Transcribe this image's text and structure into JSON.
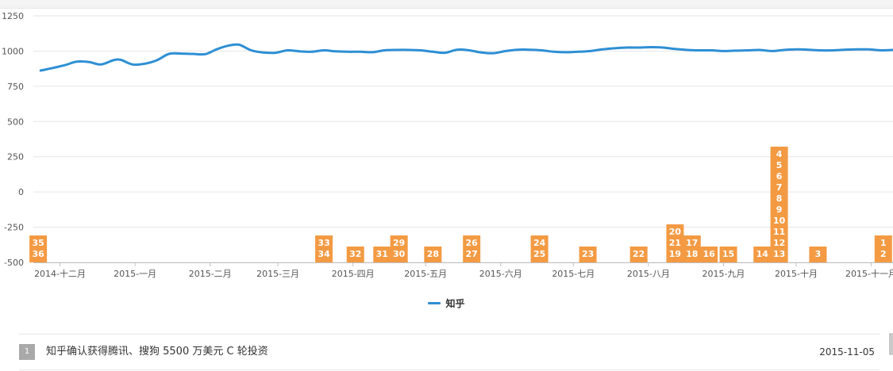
{
  "chart_data": {
    "type": "line",
    "ylim": [
      -500,
      1250
    ],
    "yticks": [
      1250,
      1000,
      750,
      500,
      250,
      0,
      -250,
      -500
    ],
    "xlim": [
      "2014-11-20",
      "2015-11-10"
    ],
    "xticks": [
      {
        "date": "2014-12-01",
        "label": "2014-十二月"
      },
      {
        "date": "2015-01-01",
        "label": "2015-一月"
      },
      {
        "date": "2015-02-01",
        "label": "2015-二月"
      },
      {
        "date": "2015-03-01",
        "label": "2015-三月"
      },
      {
        "date": "2015-04-01",
        "label": "2015-四月"
      },
      {
        "date": "2015-05-01",
        "label": "2015-五月"
      },
      {
        "date": "2015-06-01",
        "label": "2015-六月"
      },
      {
        "date": "2015-07-01",
        "label": "2015-七月"
      },
      {
        "date": "2015-08-01",
        "label": "2015-八月"
      },
      {
        "date": "2015-09-01",
        "label": "2015-九月"
      },
      {
        "date": "2015-10-01",
        "label": "2015-十月"
      },
      {
        "date": "2015-11-01",
        "label": "2015-十一月"
      }
    ],
    "grid": true,
    "legend_position": "bottom",
    "series": [
      {
        "name": "知乎",
        "color": "#2e8fd4",
        "points": [
          [
            "2014-11-23",
            862
          ],
          [
            "2014-11-28",
            880
          ],
          [
            "2014-12-03",
            900
          ],
          [
            "2014-12-08",
            925
          ],
          [
            "2014-12-13",
            922
          ],
          [
            "2014-12-18",
            905
          ],
          [
            "2014-12-23",
            935
          ],
          [
            "2014-12-26",
            938
          ],
          [
            "2014-12-31",
            905
          ],
          [
            "2015-01-05",
            910
          ],
          [
            "2015-01-10",
            935
          ],
          [
            "2015-01-15",
            980
          ],
          [
            "2015-01-20",
            982
          ],
          [
            "2015-01-25",
            980
          ],
          [
            "2015-01-30",
            978
          ],
          [
            "2015-02-04",
            1015
          ],
          [
            "2015-02-09",
            1040
          ],
          [
            "2015-02-13",
            1045
          ],
          [
            "2015-02-18",
            1005
          ],
          [
            "2015-02-23",
            990
          ],
          [
            "2015-02-28",
            988
          ],
          [
            "2015-03-05",
            1005
          ],
          [
            "2015-03-10",
            998
          ],
          [
            "2015-03-15",
            995
          ],
          [
            "2015-03-20",
            1005
          ],
          [
            "2015-03-25",
            998
          ],
          [
            "2015-03-30",
            995
          ],
          [
            "2015-04-04",
            995
          ],
          [
            "2015-04-09",
            992
          ],
          [
            "2015-04-14",
            1005
          ],
          [
            "2015-04-19",
            1008
          ],
          [
            "2015-04-24",
            1008
          ],
          [
            "2015-04-29",
            1005
          ],
          [
            "2015-05-04",
            995
          ],
          [
            "2015-05-09",
            988
          ],
          [
            "2015-05-14",
            1010
          ],
          [
            "2015-05-19",
            1005
          ],
          [
            "2015-05-24",
            990
          ],
          [
            "2015-05-29",
            985
          ],
          [
            "2015-06-03",
            1000
          ],
          [
            "2015-06-08",
            1010
          ],
          [
            "2015-06-13",
            1010
          ],
          [
            "2015-06-18",
            1005
          ],
          [
            "2015-06-23",
            995
          ],
          [
            "2015-06-28",
            992
          ],
          [
            "2015-07-03",
            995
          ],
          [
            "2015-07-08",
            1000
          ],
          [
            "2015-07-13",
            1012
          ],
          [
            "2015-07-18",
            1020
          ],
          [
            "2015-07-23",
            1025
          ],
          [
            "2015-07-28",
            1025
          ],
          [
            "2015-08-02",
            1028
          ],
          [
            "2015-08-07",
            1025
          ],
          [
            "2015-08-12",
            1015
          ],
          [
            "2015-08-17",
            1008
          ],
          [
            "2015-08-22",
            1005
          ],
          [
            "2015-08-27",
            1005
          ],
          [
            "2015-09-01",
            1000
          ],
          [
            "2015-09-06",
            1003
          ],
          [
            "2015-09-11",
            1005
          ],
          [
            "2015-09-16",
            1008
          ],
          [
            "2015-09-21",
            1000
          ],
          [
            "2015-09-26",
            1008
          ],
          [
            "2015-10-01",
            1012
          ],
          [
            "2015-10-06",
            1010
          ],
          [
            "2015-10-11",
            1005
          ],
          [
            "2015-10-16",
            1005
          ],
          [
            "2015-10-21",
            1010
          ],
          [
            "2015-10-26",
            1012
          ],
          [
            "2015-10-31",
            1012
          ],
          [
            "2015-11-05",
            1005
          ],
          [
            "2015-11-10",
            1008
          ]
        ]
      }
    ],
    "flags": [
      {
        "date": "2014-11-22",
        "labels": [
          "35",
          "36"
        ]
      },
      {
        "date": "2015-03-20",
        "labels": [
          "33",
          "34"
        ]
      },
      {
        "date": "2015-04-02",
        "labels": [
          "32"
        ]
      },
      {
        "date": "2015-04-13",
        "labels": [
          "31"
        ]
      },
      {
        "date": "2015-04-20",
        "labels": [
          "29",
          "30"
        ]
      },
      {
        "date": "2015-05-04",
        "labels": [
          "28"
        ]
      },
      {
        "date": "2015-05-20",
        "labels": [
          "26",
          "27"
        ]
      },
      {
        "date": "2015-06-17",
        "labels": [
          "24",
          "25"
        ]
      },
      {
        "date": "2015-07-07",
        "labels": [
          "23"
        ]
      },
      {
        "date": "2015-07-28",
        "labels": [
          "22"
        ]
      },
      {
        "date": "2015-08-12",
        "labels": [
          "20",
          "21",
          "19"
        ]
      },
      {
        "date": "2015-08-19",
        "labels": [
          "17",
          "18"
        ]
      },
      {
        "date": "2015-08-26",
        "labels": [
          "16"
        ]
      },
      {
        "date": "2015-09-03",
        "labels": [
          "15"
        ]
      },
      {
        "date": "2015-09-17",
        "labels": [
          "14"
        ]
      },
      {
        "date": "2015-09-24",
        "labels": [
          "4",
          "5",
          "6",
          "7",
          "8",
          "9",
          "10",
          "11",
          "12",
          "13"
        ]
      },
      {
        "date": "2015-10-10",
        "labels": [
          "3"
        ]
      },
      {
        "date": "2015-11-06",
        "labels": [
          "1",
          "2"
        ]
      }
    ]
  },
  "legend": {
    "label": "知乎",
    "color": "#2e8fd4"
  },
  "news": [
    {
      "index": "1",
      "title": "知乎确认获得腾讯、搜狗 5500 万美元 C 轮投资",
      "date": "2015-11-05"
    }
  ]
}
